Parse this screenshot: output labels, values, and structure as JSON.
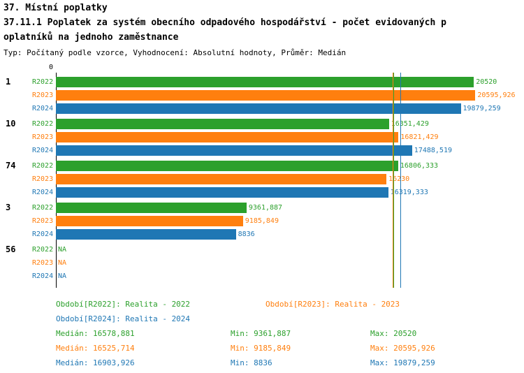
{
  "title": {
    "line1": "37. Místní poplatky",
    "line2": "37.11.1 Poplatek za systém obecního odpadového hospodářství - počet evidovaných p",
    "line3": "oplatníků na jednoho zaměstnance",
    "subtitle": "Typ: Počítaný podle vzorce, Vyhodnocení: Absolutní hodnoty, Průměr: Medián"
  },
  "colors": {
    "r2022": "#2ca02c",
    "r2023": "#ff7f0e",
    "r2024": "#1f77b4",
    "axis": "#000000"
  },
  "chart_data": {
    "type": "bar",
    "orientation": "horizontal",
    "title": "37.11.1 Poplatek za systém obecního odpadového hospodářství - počet evidovaných poplatníků na jednoho zaměstnance",
    "categories": [
      "1",
      "10",
      "74",
      "3",
      "56"
    ],
    "series": [
      {
        "name": "R2022",
        "color": "#2ca02c",
        "values": [
          20520,
          16351.429,
          16806.333,
          9361.887,
          null
        ],
        "labels": [
          "20520",
          "16351,429",
          "16806,333",
          "9361,887",
          "NA"
        ]
      },
      {
        "name": "R2023",
        "color": "#ff7f0e",
        "values": [
          20595.926,
          16821.429,
          16230,
          9185.849,
          null
        ],
        "labels": [
          "20595,926",
          "16821,429",
          "16230",
          "9185,849",
          "NA"
        ]
      },
      {
        "name": "R2024",
        "color": "#1f77b4",
        "values": [
          19879.259,
          17488.519,
          16319.333,
          8836,
          null
        ],
        "labels": [
          "19879,259",
          "17488,519",
          "16319,333",
          "8836",
          "NA"
        ]
      }
    ],
    "xlim": [
      0,
      21200
    ],
    "axis_zero_label": "0",
    "grid": false,
    "legend_position": "bottom",
    "median_lines": [
      {
        "series": "R2022",
        "value": 16578.881,
        "color": "#2ca02c"
      },
      {
        "series": "R2023",
        "value": 16525.714,
        "color": "#ff7f0e"
      },
      {
        "series": "R2024",
        "value": 16903.926,
        "color": "#1f77b4"
      }
    ]
  },
  "legend": {
    "r2022": "Období[R2022]: Realita - 2022",
    "r2023": "Období[R2023]: Realita - 2023",
    "r2024": "Období[R2024]: Realita - 2024"
  },
  "stats": [
    {
      "median": "Medián: 16578,881",
      "min": "Min: 9361,887",
      "max": "Max: 20520"
    },
    {
      "median": "Medián: 16525,714",
      "min": "Min: 9185,849",
      "max": "Max: 20595,926"
    },
    {
      "median": "Medián: 16903,926",
      "min": "Min: 8836",
      "max": "Max: 19879,259"
    }
  ]
}
